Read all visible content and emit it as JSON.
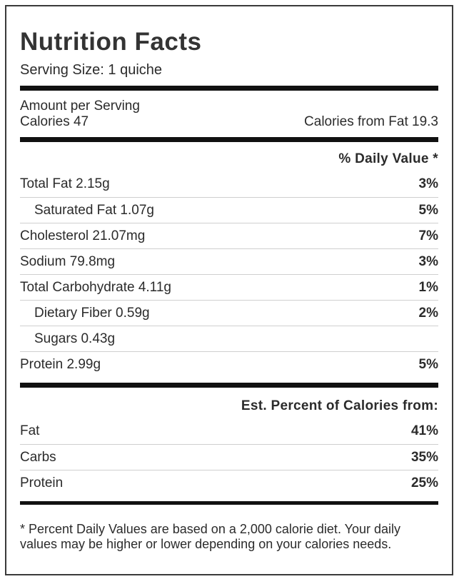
{
  "title": "Nutrition Facts",
  "serving_size": "Serving Size: 1 quiche",
  "amount_per_serving": "Amount per Serving",
  "calories": "Calories 47",
  "calories_from_fat": "Calories from Fat 19.3",
  "daily_value_header": "% Daily Value *",
  "nutrients": [
    {
      "label": "Total Fat 2.15g",
      "value": "3%"
    },
    {
      "label": "Saturated Fat 1.07g",
      "value": "5%"
    },
    {
      "label": "Cholesterol 21.07mg",
      "value": "7%"
    },
    {
      "label": "Sodium 79.8mg",
      "value": "3%"
    },
    {
      "label": "Total Carbohydrate 4.11g",
      "value": "1%"
    },
    {
      "label": "Dietary Fiber 0.59g",
      "value": "2%"
    },
    {
      "label": "Sugars 0.43g",
      "value": ""
    },
    {
      "label": "Protein 2.99g",
      "value": "5%"
    }
  ],
  "calories_header": "Est. Percent of Calories from:",
  "calorie_sources": [
    {
      "label": "Fat",
      "value": "41%"
    },
    {
      "label": "Carbs",
      "value": "35%"
    },
    {
      "label": "Protein",
      "value": "25%"
    }
  ],
  "footnote": "* Percent Daily Values are based on a 2,000 calorie diet. Your daily values may be higher or lower depending on your calories needs."
}
